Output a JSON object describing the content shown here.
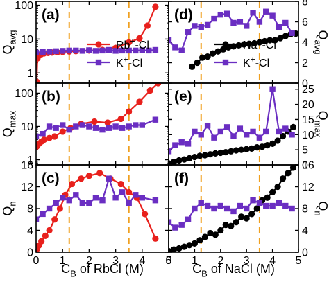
{
  "colors": {
    "red": "#e8201c",
    "purple": "#6a2ec2",
    "black": "#000000",
    "dashed": "#f0a020"
  },
  "xlabels": {
    "left": "C_B of RbCl (M)",
    "right": "C_B of NaCl (M)"
  },
  "chart_data": [
    {
      "id": "a",
      "type": "line",
      "panel_label": "(a)",
      "position": "left-top",
      "ylabel": "Q_avg",
      "yscale": "log",
      "ylim": [
        0.5,
        130
      ],
      "xlim": [
        0,
        5
      ],
      "yticks": [
        {
          "v": 1,
          "label": "1"
        },
        {
          "v": 10,
          "label": "10"
        },
        {
          "v": 100,
          "label": "100"
        }
      ],
      "xticks": [],
      "vlines": [
        1.25,
        3.5
      ],
      "legend": "lower-right",
      "series": [
        {
          "name": "Rb+-Cl-",
          "color": "#e8201c",
          "marker": "circle",
          "x": [
            0.02,
            0.05,
            0.1,
            0.2,
            0.3,
            0.45,
            0.6,
            0.8,
            1.0,
            1.25,
            1.5,
            2.0,
            2.5,
            3.0,
            3.5,
            3.9,
            4.2,
            4.5
          ],
          "y": [
            0.55,
            2.7,
            3.3,
            3.6,
            3.8,
            3.9,
            4.0,
            4.1,
            4.2,
            4.3,
            4.4,
            4.6,
            4.8,
            5.5,
            8.0,
            10.5,
            25,
            90
          ]
        },
        {
          "name": "K+-Cl-",
          "color": "#6a2ec2",
          "marker": "square",
          "x": [
            0,
            0.25,
            0.5,
            0.75,
            1.0,
            1.25,
            1.5,
            1.75,
            2.0,
            2.25,
            2.5,
            2.75,
            3.0,
            3.25,
            3.5,
            3.75,
            4.0,
            4.25,
            4.5
          ],
          "y": [
            4.0,
            4.2,
            4.3,
            4.4,
            4.5,
            4.6,
            4.6,
            4.5,
            4.7,
            4.5,
            4.6,
            4.8,
            4.5,
            4.6,
            4.6,
            4.6,
            4.7,
            4.6,
            4.8
          ]
        }
      ]
    },
    {
      "id": "b",
      "type": "line",
      "panel_label": "(b)",
      "position": "left-middle",
      "ylabel": "Q_max",
      "yscale": "log",
      "ylim": [
        0.7,
        200
      ],
      "xlim": [
        0,
        5
      ],
      "yticks": [
        {
          "v": 1,
          "label": "1"
        },
        {
          "v": 10,
          "label": "10"
        },
        {
          "v": 100,
          "label": "100"
        }
      ],
      "xticks": [],
      "vlines": [
        1.25,
        3.5
      ],
      "series": [
        {
          "name": "Rb+-Cl-",
          "color": "#e8201c",
          "marker": "circle",
          "x": [
            0.02,
            0.1,
            0.2,
            0.3,
            0.5,
            0.7,
            1.0,
            1.3,
            1.7,
            2.2,
            2.7,
            3.2,
            3.5,
            3.9,
            4.3,
            4.6
          ],
          "y": [
            2.5,
            3.0,
            3.5,
            4.0,
            4.5,
            5.0,
            7.0,
            9.0,
            12,
            14,
            13,
            17,
            28,
            55,
            120,
            200
          ]
        },
        {
          "name": "K+-Cl-",
          "color": "#6a2ec2",
          "marker": "square",
          "x": [
            0,
            0.25,
            0.5,
            0.75,
            1.0,
            1.25,
            1.5,
            1.75,
            2.0,
            2.25,
            2.5,
            2.75,
            3.0,
            3.25,
            3.5,
            3.75,
            4.0,
            4.5
          ],
          "y": [
            5.0,
            6.0,
            10,
            9.0,
            11,
            8.0,
            10,
            11,
            10,
            9.0,
            8.0,
            9.0,
            10,
            9.0,
            10,
            11,
            11,
            16
          ]
        }
      ]
    },
    {
      "id": "c",
      "type": "line",
      "panel_label": "(c)",
      "position": "left-bottom",
      "ylabel": "Q_n",
      "yscale": "linear",
      "ylim": [
        0,
        16
      ],
      "xlim": [
        0,
        5
      ],
      "yticks": [
        {
          "v": 0,
          "label": "0"
        },
        {
          "v": 4,
          "label": "4"
        },
        {
          "v": 8,
          "label": "8"
        },
        {
          "v": 12,
          "label": "12"
        },
        {
          "v": 16,
          "label": "16"
        }
      ],
      "xticks": [
        {
          "v": 0,
          "label": "0"
        },
        {
          "v": 1,
          "label": "1"
        },
        {
          "v": 2,
          "label": "2"
        },
        {
          "v": 3,
          "label": "3"
        },
        {
          "v": 4,
          "label": "4"
        },
        {
          "v": 5,
          "label": "5"
        }
      ],
      "vlines": [
        1.25,
        3.5
      ],
      "series": [
        {
          "name": "Rb+-Cl-",
          "color": "#e8201c",
          "marker": "circle",
          "x": [
            0.02,
            0.1,
            0.2,
            0.35,
            0.5,
            0.7,
            0.9,
            1.1,
            1.35,
            1.7,
            2.0,
            2.4,
            2.8,
            3.2,
            3.5,
            3.8,
            4.1,
            4.5
          ],
          "y": [
            0.5,
            1.2,
            2.0,
            3.0,
            4.0,
            6.0,
            8.0,
            10.5,
            12.5,
            13.5,
            14.0,
            14.5,
            13.5,
            12.5,
            11.0,
            10.0,
            7.0,
            2.5
          ]
        },
        {
          "name": "K+-Cl-",
          "color": "#6a2ec2",
          "marker": "square",
          "x": [
            0,
            0.25,
            0.5,
            0.75,
            1.0,
            1.25,
            1.5,
            1.75,
            2.0,
            2.25,
            2.5,
            2.75,
            3.0,
            3.25,
            3.5,
            3.75,
            4.0,
            4.5
          ],
          "y": [
            6.0,
            7.0,
            8.0,
            9.0,
            10.0,
            9.5,
            10.5,
            9.0,
            9.0,
            10.0,
            9.5,
            13.5,
            10.0,
            11.0,
            9.0,
            10.5,
            10.0,
            9.5
          ]
        }
      ]
    },
    {
      "id": "d",
      "type": "line",
      "panel_label": "(d)",
      "position": "right-top",
      "ylabel": "Q_avg",
      "yscale": "linear",
      "ylim": [
        0,
        8
      ],
      "xlim": [
        0,
        5
      ],
      "yticks": [
        {
          "v": 0,
          "label": "0"
        },
        {
          "v": 2,
          "label": "2"
        },
        {
          "v": 4,
          "label": "4"
        },
        {
          "v": 6,
          "label": "6"
        },
        {
          "v": 8,
          "label": "8"
        }
      ],
      "xticks": [],
      "vlines": [
        1.25,
        3.5
      ],
      "legend": "lower-right",
      "series": [
        {
          "name": "Na+-Cl-",
          "color": "#000000",
          "marker": "circle",
          "x": [
            0.9,
            1.1,
            1.3,
            1.5,
            1.7,
            1.9,
            2.1,
            2.3,
            2.5,
            2.7,
            2.9,
            3.1,
            3.3,
            3.5,
            3.7,
            3.9,
            4.1,
            4.3,
            4.5,
            4.7,
            4.9
          ],
          "y": [
            1.6,
            2.0,
            2.5,
            2.6,
            2.9,
            3.1,
            3.3,
            3.5,
            3.6,
            3.7,
            3.8,
            3.85,
            3.9,
            4.0,
            4.1,
            4.2,
            4.2,
            4.4,
            4.6,
            4.8,
            4.85
          ]
        },
        {
          "name": "K+-Cl-",
          "color": "#6a2ec2",
          "marker": "square",
          "x": [
            0,
            0.25,
            0.5,
            0.75,
            1.0,
            1.25,
            1.5,
            1.75,
            2.0,
            2.25,
            2.5,
            2.75,
            3.0,
            3.25,
            3.5,
            3.75,
            4.0,
            4.25,
            4.5,
            4.75
          ],
          "y": [
            4.2,
            3.5,
            3.2,
            5.0,
            5.6,
            5.5,
            5.7,
            6.3,
            6.7,
            6.8,
            5.9,
            6.0,
            5.6,
            6.9,
            6.0,
            7.0,
            6.6,
            5.5,
            5.9,
            4.9
          ]
        }
      ]
    },
    {
      "id": "e",
      "type": "line",
      "panel_label": "(e)",
      "position": "right-middle",
      "ylabel": "Q_max",
      "yscale": "linear",
      "ylim": [
        0,
        27
      ],
      "xlim": [
        0,
        5
      ],
      "yticks": [
        {
          "v": 0,
          "label": "0"
        },
        {
          "v": 5,
          "label": "5"
        },
        {
          "v": 10,
          "label": "10"
        },
        {
          "v": 15,
          "label": "15"
        },
        {
          "v": 20,
          "label": "20"
        },
        {
          "v": 25,
          "label": "25"
        }
      ],
      "xticks": [],
      "vlines": [
        1.25,
        3.5
      ],
      "series": [
        {
          "name": "Na+-Cl-",
          "color": "#000000",
          "marker": "circle",
          "x": [
            0,
            0.2,
            0.4,
            0.6,
            0.8,
            1.0,
            1.2,
            1.4,
            1.6,
            1.8,
            2.0,
            2.2,
            2.4,
            2.6,
            2.8,
            3.0,
            3.2,
            3.4,
            3.6,
            3.8,
            4.0,
            4.2,
            4.4,
            4.6,
            4.8
          ],
          "y": [
            0.5,
            1.0,
            1.5,
            1.8,
            2.2,
            2.6,
            3.0,
            3.2,
            3.5,
            3.8,
            4.0,
            4.2,
            4.5,
            4.8,
            5.0,
            5.2,
            5.4,
            5.8,
            6.0,
            6.5,
            7.0,
            8.0,
            9.5,
            11,
            12.5
          ]
        },
        {
          "name": "K+-Cl-",
          "color": "#6a2ec2",
          "marker": "square",
          "x": [
            0,
            0.25,
            0.5,
            0.75,
            1.0,
            1.25,
            1.5,
            1.75,
            2.0,
            2.25,
            2.5,
            2.75,
            3.0,
            3.25,
            3.5,
            3.75,
            4.0,
            4.25,
            4.5,
            4.75
          ],
          "y": [
            4.5,
            6.5,
            7.5,
            7.0,
            11,
            10,
            13,
            9.0,
            11,
            12.5,
            9.5,
            12,
            10,
            11,
            9.0,
            11,
            25,
            11,
            12,
            10
          ]
        }
      ]
    },
    {
      "id": "f",
      "type": "line",
      "panel_label": "(f)",
      "position": "right-bottom",
      "ylabel": "Q_n",
      "yscale": "linear",
      "ylim": [
        0,
        16
      ],
      "xlim": [
        0,
        5
      ],
      "yticks": [
        {
          "v": 0,
          "label": "0"
        },
        {
          "v": 4,
          "label": "4"
        },
        {
          "v": 8,
          "label": "8"
        },
        {
          "v": 12,
          "label": "12"
        },
        {
          "v": 16,
          "label": "16"
        }
      ],
      "xticks": [
        {
          "v": 0,
          "label": "0"
        },
        {
          "v": 1,
          "label": "1"
        },
        {
          "v": 2,
          "label": "2"
        },
        {
          "v": 3,
          "label": "3"
        },
        {
          "v": 4,
          "label": "4"
        },
        {
          "v": 5,
          "label": "5"
        }
      ],
      "vlines": [
        1.25,
        3.5
      ],
      "series": [
        {
          "name": "Na+-Cl-",
          "color": "#000000",
          "marker": "circle",
          "x": [
            0,
            0.2,
            0.4,
            0.6,
            0.8,
            1.0,
            1.2,
            1.4,
            1.6,
            1.8,
            2.0,
            2.2,
            2.4,
            2.6,
            2.8,
            3.0,
            3.2,
            3.4,
            3.6,
            3.8,
            4.0,
            4.2,
            4.4,
            4.6,
            4.8
          ],
          "y": [
            0.2,
            0.5,
            0.7,
            1.0,
            1.3,
            1.6,
            2.2,
            2.8,
            3.5,
            3.2,
            4.0,
            5.0,
            4.8,
            5.5,
            6.5,
            6.2,
            7.0,
            8.0,
            9.5,
            10.0,
            11.0,
            12.0,
            13.5,
            14.5,
            15.5
          ]
        },
        {
          "name": "K+-Cl-",
          "color": "#6a2ec2",
          "marker": "square",
          "x": [
            0,
            0.25,
            0.5,
            0.75,
            1.0,
            1.25,
            1.5,
            1.75,
            2.0,
            2.25,
            2.5,
            2.75,
            3.0,
            3.25,
            3.5,
            3.75,
            4.0,
            4.25,
            4.5,
            4.75
          ],
          "y": [
            5.5,
            4.5,
            5.0,
            6.0,
            8.0,
            9.0,
            8.5,
            8.0,
            8.5,
            8.0,
            7.5,
            8.5,
            8.0,
            9.5,
            9.0,
            8.5,
            8.5,
            9.0,
            8.5,
            8.0
          ]
        }
      ]
    }
  ]
}
